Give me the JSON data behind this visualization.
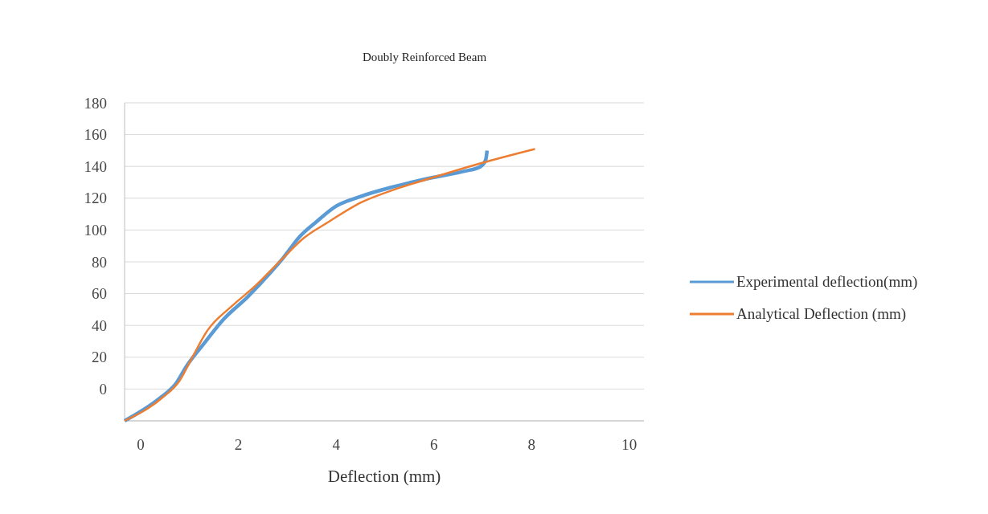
{
  "chart_data": {
    "type": "line",
    "title": "Doubly Reinforced Beam",
    "xlabel": "Deflection (mm)",
    "xlim": [
      -0.33,
      10.3
    ],
    "xticks": [
      0,
      2,
      4,
      6,
      8,
      10
    ],
    "ylim": [
      -20,
      180
    ],
    "yticks": [
      {
        "value": -20,
        "label": null
      },
      0,
      20,
      40,
      60,
      80,
      100,
      120,
      140,
      160,
      180
    ],
    "grid": "y",
    "legend": "right",
    "line_style": "solid",
    "marker": "none",
    "series": [
      {
        "name": "Experimental  deflection(mm)",
        "color": "#5b9bd5",
        "x": [
          -0.33,
          0.38,
          0.71,
          0.95,
          1.28,
          1.7,
          2.19,
          2.68,
          2.93,
          3.26,
          3.59,
          4.0,
          4.49,
          5.15,
          5.98,
          6.63,
          6.96,
          7.06,
          7.09
        ],
        "values": [
          -20,
          -6,
          3,
          15,
          28,
          44,
          58,
          74,
          83,
          96,
          105,
          115,
          121,
          127,
          133,
          137,
          140,
          144,
          150
        ]
      },
      {
        "name": "Analytical Deflection (mm)",
        "color": "#ed7d31",
        "x": [
          -0.33,
          0.46,
          0.79,
          1.04,
          1.37,
          1.86,
          2.35,
          2.9,
          3.34,
          3.84,
          4.49,
          5.15,
          5.98,
          6.96,
          8.07
        ],
        "values": [
          -20,
          -5,
          5,
          19,
          37,
          52,
          65,
          82,
          95,
          105,
          117,
          125,
          133,
          142,
          151
        ]
      }
    ]
  }
}
